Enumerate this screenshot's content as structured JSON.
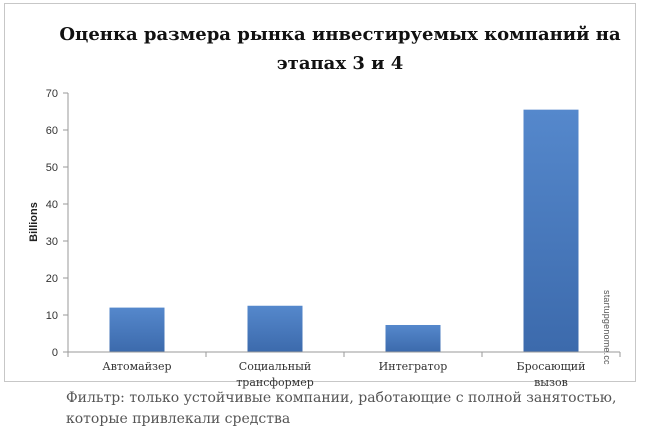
{
  "chart_data": {
    "type": "bar",
    "title": [
      "Оценка размера рынка инвестируемых компаний на",
      "этапах 3 и 4"
    ],
    "ylabel": "Billions",
    "categories": [
      [
        "Автомайзер"
      ],
      [
        "Социальный",
        "трансформер"
      ],
      [
        "Интегратор"
      ],
      [
        "Бросающий",
        "вызов"
      ]
    ],
    "values": [
      12,
      12.5,
      7.3,
      65.5
    ],
    "ylim": [
      0,
      70
    ],
    "yticks": [
      0,
      10,
      20,
      30,
      40,
      50,
      60,
      70
    ],
    "bar_color": "#4f81bd",
    "grid": false
  },
  "watermark": "startupgenome.cc",
  "caption": "Фильтр: только устойчивые компании, работающие с полной занятостью,  которые привлекали средства"
}
